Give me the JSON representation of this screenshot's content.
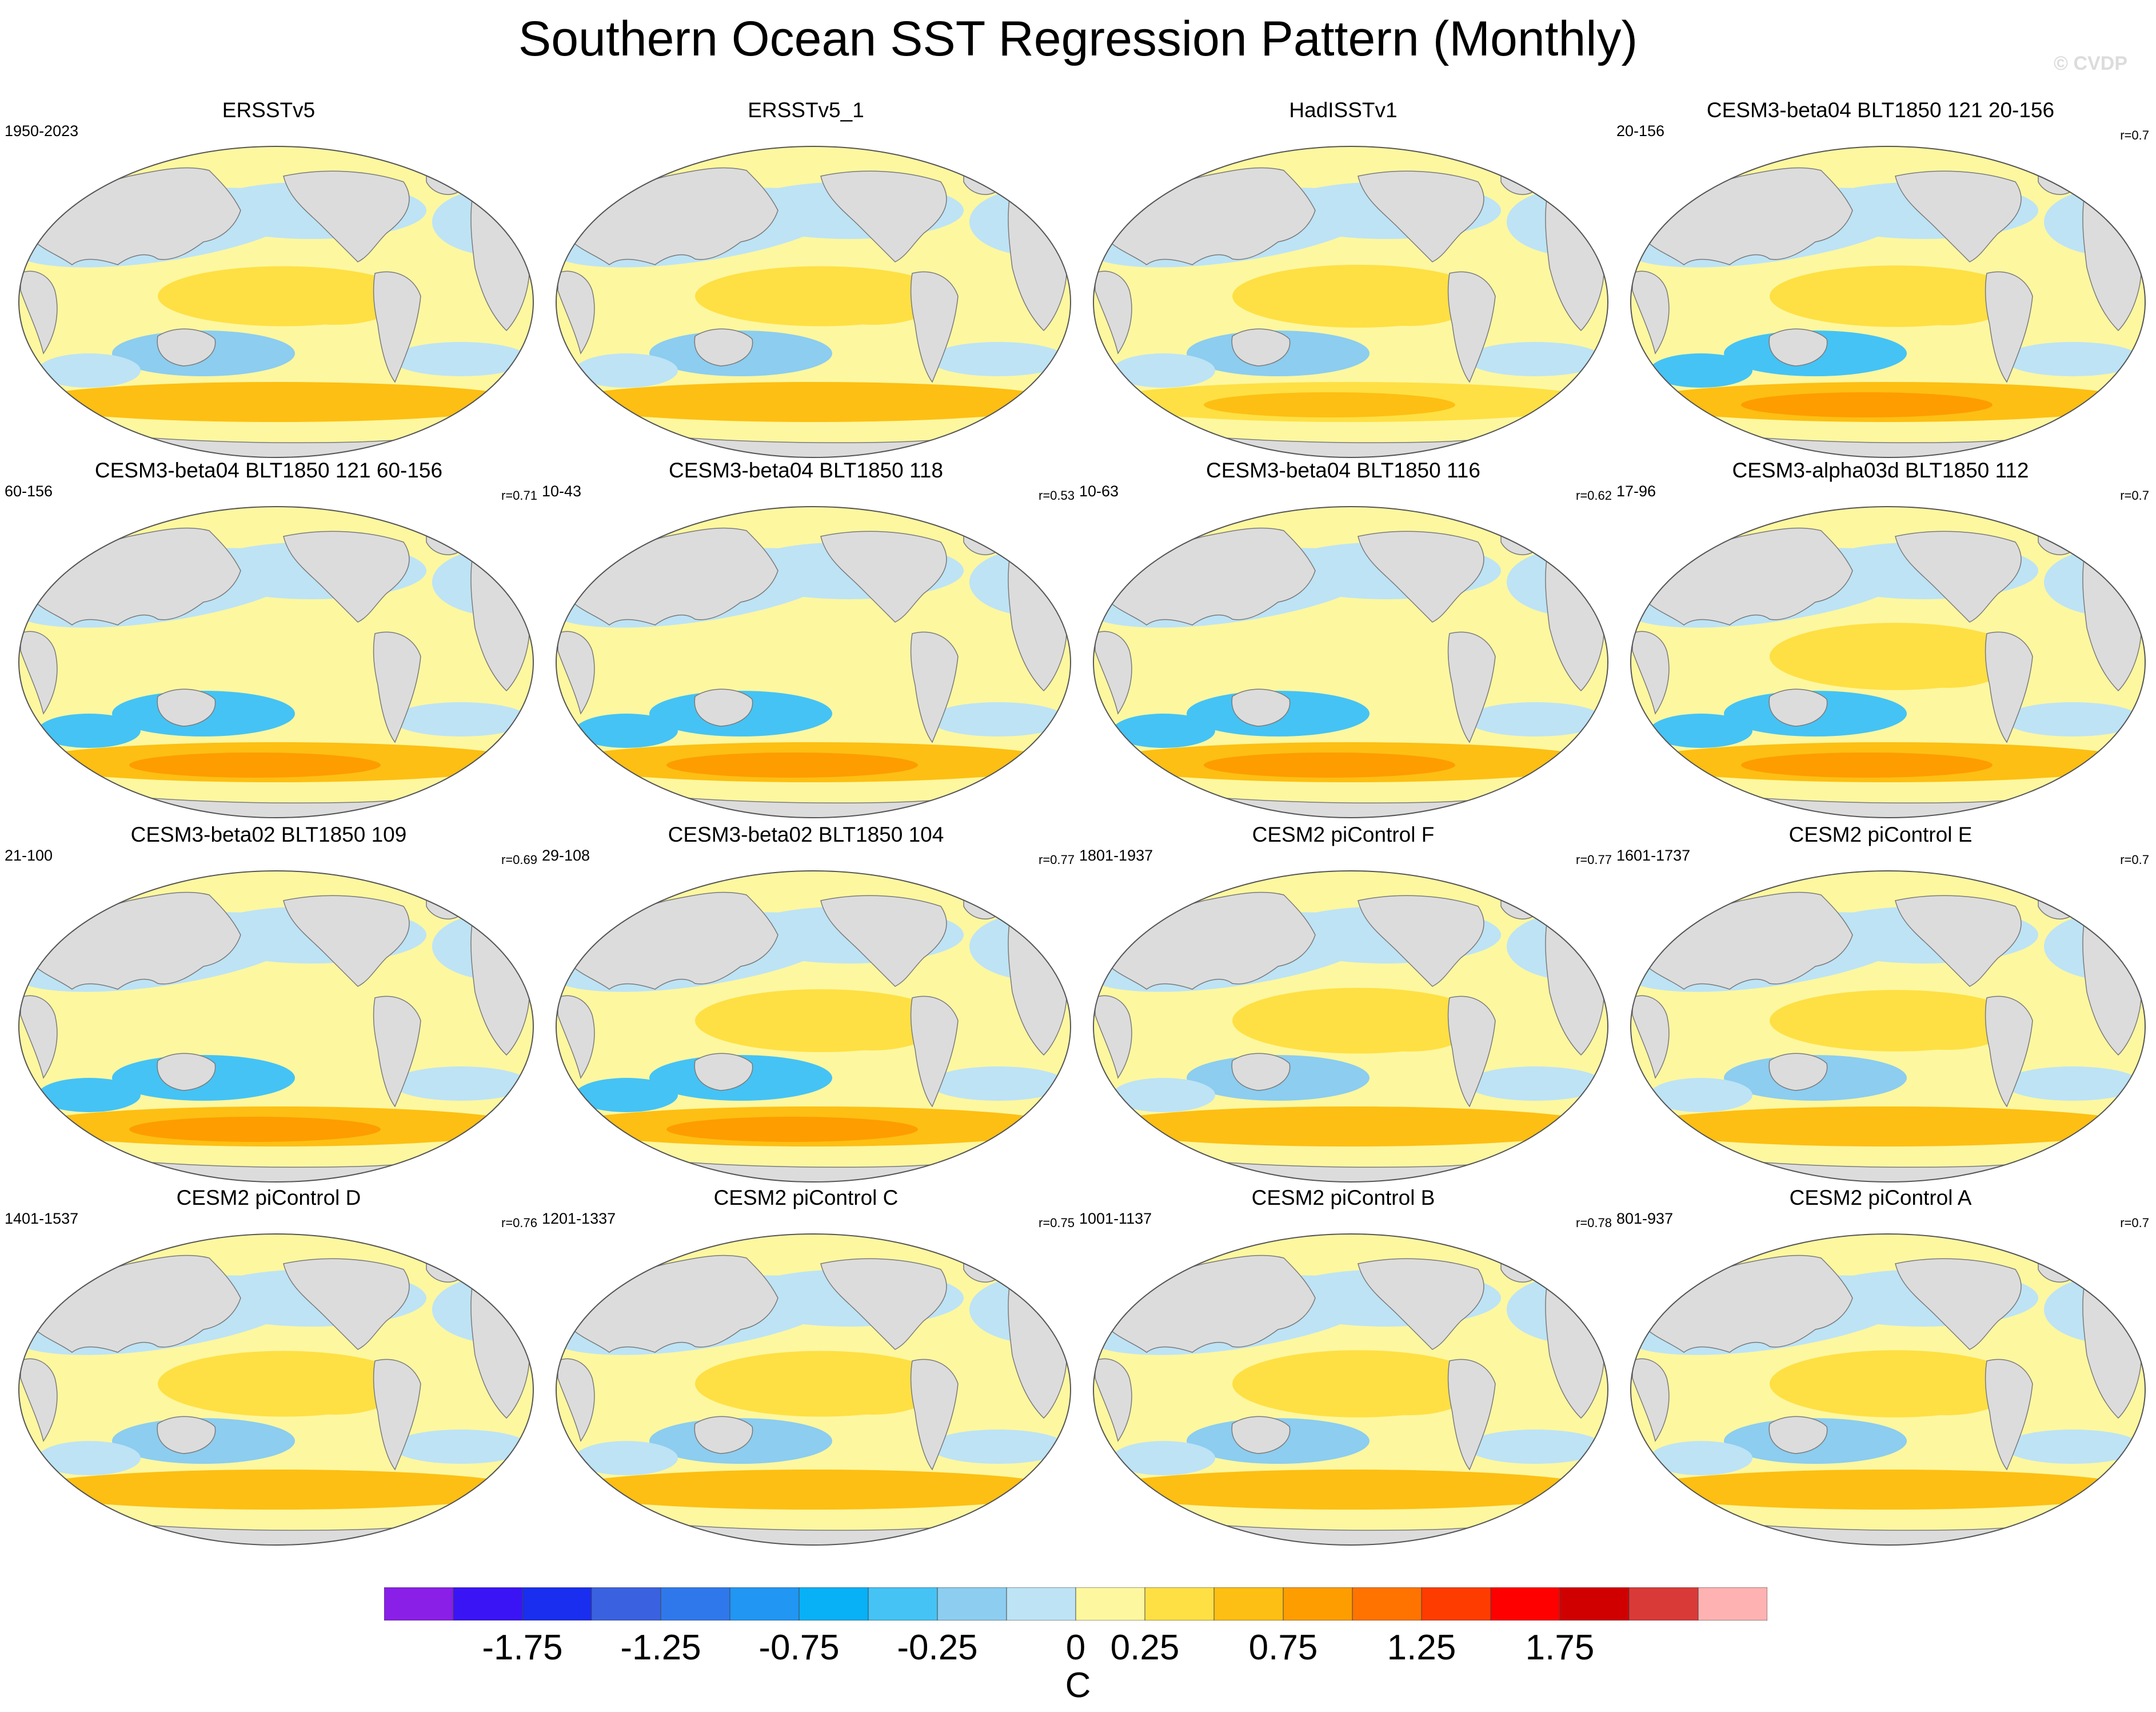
{
  "title": "Southern Ocean SST Regression Pattern (Monthly)",
  "watermark": "© CVDP",
  "chart_data": {
    "type": "heatmap",
    "projection": "global map (Robinson-like)",
    "variable": "SST regression",
    "panels": [
      {
        "title": "ERSSTv5",
        "years": "1950-2023",
        "r": "",
        "pattern": "obs",
        "so_strength": 0.45,
        "enso_strength": 0.5
      },
      {
        "title": "ERSSTv5_1",
        "years": "",
        "r": "",
        "pattern": "obs",
        "so_strength": 0.45,
        "enso_strength": 0.5
      },
      {
        "title": "HadISSTv1",
        "years": "",
        "r": "",
        "pattern": "obs",
        "so_strength": 0.3,
        "enso_strength": 0.6
      },
      {
        "title": "CESM3-beta04 BLT1850 121 20-156",
        "years": "20-156",
        "r": "r=0.7",
        "pattern": "beta",
        "so_strength": 0.9,
        "enso_strength": 0.55
      },
      {
        "title": "CESM3-beta04 BLT1850 121 60-156",
        "years": "60-156",
        "r": "r=0.71",
        "pattern": "beta",
        "so_strength": 0.9,
        "enso_strength": 0.35
      },
      {
        "title": "CESM3-beta04 BLT1850 118",
        "years": "10-43",
        "r": "r=0.53",
        "pattern": "beta",
        "so_strength": 0.95,
        "enso_strength": 0.25
      },
      {
        "title": "CESM3-beta04 BLT1850 116",
        "years": "10-63",
        "r": "r=0.62",
        "pattern": "beta",
        "so_strength": 0.85,
        "enso_strength": 0.3
      },
      {
        "title": "CESM3-alpha03d BLT1850 112",
        "years": "17-96",
        "r": "r=0.7",
        "pattern": "beta",
        "so_strength": 0.95,
        "enso_strength": 0.75
      },
      {
        "title": "CESM3-beta02 BLT1850 109",
        "years": "21-100",
        "r": "r=0.69",
        "pattern": "beta",
        "so_strength": 0.85,
        "enso_strength": 0.3
      },
      {
        "title": "CESM3-beta02 BLT1850 104",
        "years": "29-108",
        "r": "r=0.77",
        "pattern": "beta",
        "so_strength": 0.95,
        "enso_strength": 0.6
      },
      {
        "title": "CESM2 piControl F",
        "years": "1801-1937",
        "r": "r=0.77",
        "pattern": "cesm2",
        "so_strength": 0.6,
        "enso_strength": 0.7
      },
      {
        "title": "CESM2 piControl E",
        "years": "1601-1737",
        "r": "r=0.7",
        "pattern": "cesm2",
        "so_strength": 0.45,
        "enso_strength": 0.55
      },
      {
        "title": "CESM2 piControl D",
        "years": "1401-1537",
        "r": "r=0.76",
        "pattern": "cesm2",
        "so_strength": 0.55,
        "enso_strength": 0.7
      },
      {
        "title": "CESM2 piControl C",
        "years": "1201-1337",
        "r": "r=0.75",
        "pattern": "cesm2",
        "so_strength": 0.55,
        "enso_strength": 0.7
      },
      {
        "title": "CESM2 piControl B",
        "years": "1001-1137",
        "r": "r=0.78",
        "pattern": "cesm2",
        "so_strength": 0.5,
        "enso_strength": 0.75
      },
      {
        "title": "CESM2 piControl A",
        "years": "801-937",
        "r": "r=0.7",
        "pattern": "cesm2",
        "so_strength": 0.65,
        "enso_strength": 0.75
      }
    ],
    "colorbar": {
      "units": "C",
      "colors": [
        "#8a1fe8",
        "#3a14f5",
        "#1a2ef0",
        "#3a62e0",
        "#2f78eb",
        "#2196f3",
        "#08b0f5",
        "#45c3f5",
        "#8ccdf0",
        "#bde3f5",
        "#fdf7a0",
        "#fee044",
        "#fdbf13",
        "#fd9d00",
        "#ff7300",
        "#ff3c00",
        "#ff0000",
        "#d00000",
        "#d93a38",
        "#ffb2b2"
      ],
      "labels": [
        "-1.75",
        "-1.25",
        "-0.75",
        "-0.25",
        "0",
        "0.25",
        "0.75",
        "1.25",
        "1.75"
      ]
    },
    "land_color": "#dcdcdc",
    "ocean_neutral": "#ffffff"
  }
}
